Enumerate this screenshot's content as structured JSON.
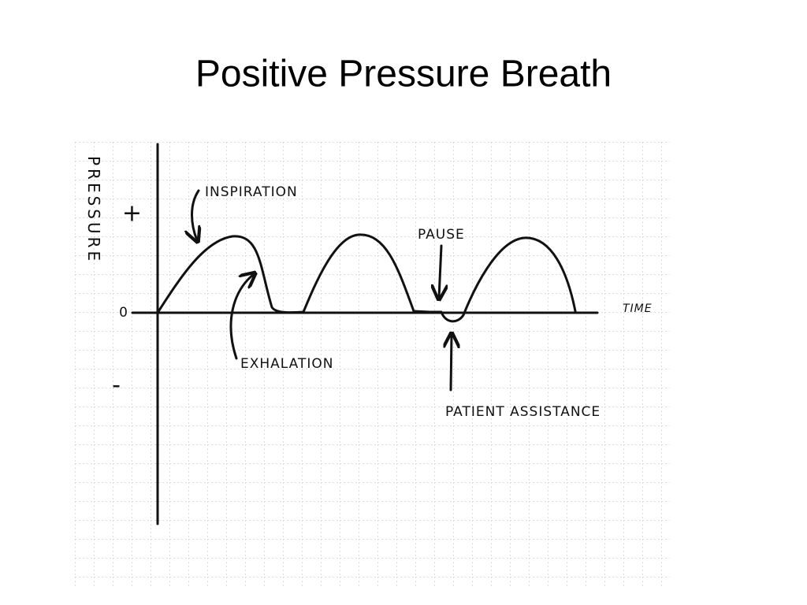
{
  "title": "Positive Pressure Breath",
  "axes": {
    "y_label": "PRESSURE",
    "plus": "+",
    "zero": "0",
    "minus": "-",
    "x_label": "TIME"
  },
  "annotations": {
    "inspiration": "INSPIRATION",
    "exhalation": "EXHALATION",
    "pause": "PAUSE",
    "patient_assistance": "PATIENT ASSISTANCE"
  }
}
